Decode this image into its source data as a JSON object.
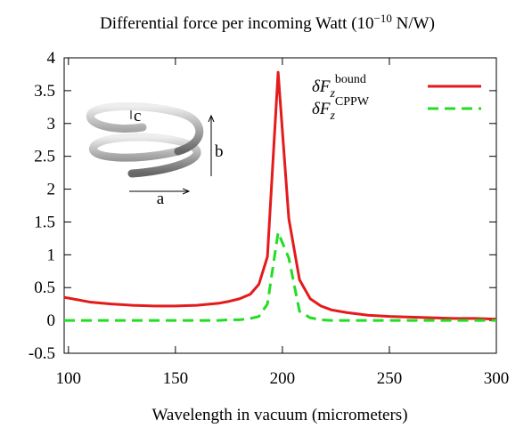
{
  "chart_data": {
    "type": "line",
    "title": [
      "Differential force per incoming Watt (10",
      "−10",
      " N/W)"
    ],
    "x_label": "Wavelength in vacuum (micrometers)",
    "annotations": [
      "a",
      "b",
      "c"
    ],
    "x": [
      98,
      100,
      110,
      120,
      130,
      140,
      150,
      160,
      170,
      175,
      180,
      185,
      189,
      193,
      198,
      203,
      208,
      213,
      218,
      223,
      230,
      240,
      250,
      260,
      270,
      280,
      290,
      300
    ],
    "series": [
      {
        "name": [
          "δF",
          "z",
          "bound"
        ],
        "color": "#e41a1c",
        "style": "solid",
        "values": [
          0.35,
          0.34,
          0.28,
          0.25,
          0.23,
          0.22,
          0.22,
          0.23,
          0.26,
          0.29,
          0.33,
          0.4,
          0.55,
          0.97,
          3.78,
          1.55,
          0.62,
          0.33,
          0.22,
          0.16,
          0.12,
          0.08,
          0.06,
          0.05,
          0.04,
          0.03,
          0.03,
          0.02
        ]
      },
      {
        "name": [
          "δF",
          "z",
          "CPPW"
        ],
        "color": "#22dd22",
        "style": "dashed",
        "values": [
          0,
          0,
          0,
          0,
          0,
          0,
          0,
          0,
          0,
          0.01,
          0.01,
          0.03,
          0.06,
          0.25,
          1.34,
          0.95,
          0.14,
          0.04,
          0.01,
          0,
          0,
          0,
          0,
          0,
          0,
          0,
          0,
          0
        ]
      }
    ],
    "xlim": [
      98,
      300
    ],
    "xticks": [
      100,
      150,
      200,
      250,
      300
    ],
    "ylim": [
      -0.5,
      4
    ],
    "yticks": [
      -0.5,
      0,
      0.5,
      1,
      1.5,
      2,
      2.5,
      3,
      3.5,
      4
    ],
    "legend": "top-right"
  }
}
